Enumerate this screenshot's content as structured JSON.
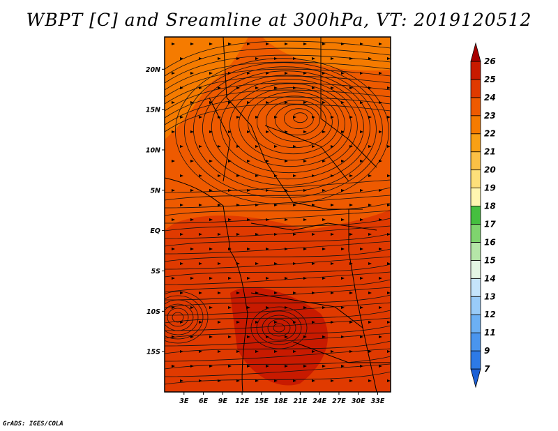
{
  "title": "WBPT [C] and Sreamline at 300hPa, VT: 2019120512",
  "credit": "GrADS: IGES/COLA",
  "map": {
    "lon_range": [
      0,
      35
    ],
    "lat_range": [
      -20,
      24
    ],
    "lon_ticks": [
      {
        "value": 3,
        "label": "3E"
      },
      {
        "value": 6,
        "label": "6E"
      },
      {
        "value": 9,
        "label": "9E"
      },
      {
        "value": 12,
        "label": "12E"
      },
      {
        "value": 15,
        "label": "15E"
      },
      {
        "value": 18,
        "label": "18E"
      },
      {
        "value": 21,
        "label": "21E"
      },
      {
        "value": 24,
        "label": "24E"
      },
      {
        "value": 27,
        "label": "27E"
      },
      {
        "value": 30,
        "label": "30E"
      },
      {
        "value": 33,
        "label": "33E"
      }
    ],
    "lat_ticks": [
      {
        "value": 20,
        "label": "20N"
      },
      {
        "value": 15,
        "label": "15N"
      },
      {
        "value": 10,
        "label": "10N"
      },
      {
        "value": 5,
        "label": "5N"
      },
      {
        "value": 0,
        "label": "EQ"
      },
      {
        "value": -5,
        "label": "5S"
      },
      {
        "value": -10,
        "label": "10S"
      },
      {
        "value": -15,
        "label": "15S"
      }
    ],
    "vortex_center": {
      "lon": 21,
      "lat": 14
    }
  },
  "colorbar": {
    "colors": [
      "#1a5fd6",
      "#2d7ae6",
      "#4a95ee",
      "#6cb0f4",
      "#99cbf8",
      "#c5e4fb",
      "#e4f6e4",
      "#b5e6a8",
      "#7fd46e",
      "#45bf3f",
      "#fff6b0",
      "#fde07a",
      "#fbc045",
      "#f8a014",
      "#f57b00",
      "#ee5a00",
      "#e03a00",
      "#c81a00",
      "#a80000"
    ],
    "labels": [
      "7",
      "9",
      "11",
      "12",
      "13",
      "14",
      "15",
      "16",
      "17",
      "18",
      "19",
      "20",
      "21",
      "22",
      "23",
      "24",
      "25",
      "26"
    ]
  }
}
